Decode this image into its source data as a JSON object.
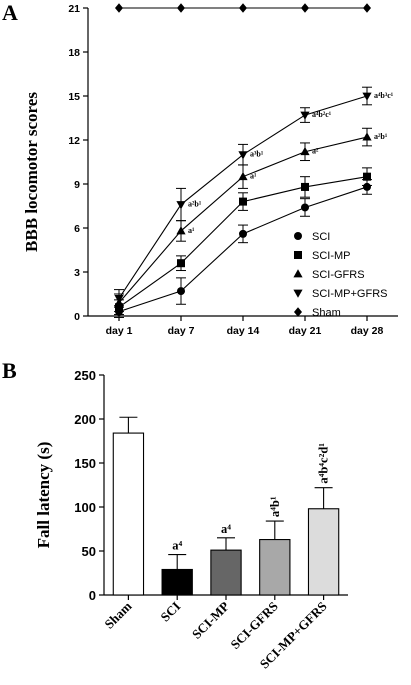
{
  "panel_a_letter": "A",
  "panel_b_letter": "B",
  "chart_data": [
    {
      "type": "line",
      "xlabel": "",
      "ylabel": "BBB locomotor scores",
      "categories": [
        "day 1",
        "day 7",
        "day 14",
        "day 21",
        "day 28"
      ],
      "ylim": [
        0,
        21
      ],
      "yticks": [
        0,
        3,
        6,
        9,
        12,
        15,
        18,
        21
      ],
      "legend_position": "bottom-right",
      "series": [
        {
          "name": "SCI",
          "marker": "circle",
          "values": [
            0.3,
            1.7,
            5.6,
            7.4,
            8.8
          ],
          "errors": [
            0.4,
            0.9,
            0.6,
            0.6,
            0.5
          ],
          "annotations": [
            "",
            "",
            "",
            "",
            ""
          ]
        },
        {
          "name": "SCI-MP",
          "marker": "square",
          "values": [
            0.6,
            3.6,
            7.8,
            8.8,
            9.5
          ],
          "errors": [
            0.5,
            0.5,
            0.6,
            0.7,
            0.6
          ],
          "annotations": [
            "",
            "",
            "",
            "",
            ""
          ]
        },
        {
          "name": "SCI-GFRS",
          "marker": "triangle-up",
          "values": [
            0.9,
            5.8,
            9.5,
            11.2,
            12.2
          ],
          "errors": [
            0.6,
            0.7,
            0.8,
            0.6,
            0.6
          ],
          "annotations": [
            "",
            "a¹",
            "a¹",
            "a²",
            "a²b¹"
          ]
        },
        {
          "name": "SCI-MP+GFRS",
          "marker": "triangle-down",
          "values": [
            1.2,
            7.6,
            11.0,
            13.7,
            15.0
          ],
          "errors": [
            0.6,
            1.1,
            0.7,
            0.5,
            0.6
          ],
          "annotations": [
            "",
            "a²b¹",
            "a³b¹",
            "a⁴b²c¹",
            "a⁴b³c¹"
          ]
        },
        {
          "name": "Sham",
          "marker": "diamond",
          "values": [
            21,
            21,
            21,
            21,
            21
          ],
          "errors": [
            0,
            0,
            0,
            0,
            0
          ],
          "annotations": [
            "",
            "",
            "",
            "",
            ""
          ]
        }
      ]
    },
    {
      "type": "bar",
      "xlabel": "",
      "ylabel": "Fall latency (s)",
      "categories": [
        "Sham",
        "SCI",
        "SCI-MP",
        "SCI-GFRS",
        "SCI-MP+GFRS"
      ],
      "ylim": [
        0,
        250
      ],
      "yticks": [
        0,
        50,
        100,
        150,
        200,
        250
      ],
      "values": [
        184,
        29,
        51,
        63,
        98
      ],
      "errors": [
        18,
        17,
        14,
        21,
        24
      ],
      "annotations": [
        "",
        "a⁴",
        "a⁴",
        "a⁴b¹",
        "a⁴b⁴c²d¹"
      ],
      "colors": [
        "#ffffff",
        "#000000",
        "#666666",
        "#a8a8a8",
        "#dcdcdc"
      ]
    }
  ]
}
